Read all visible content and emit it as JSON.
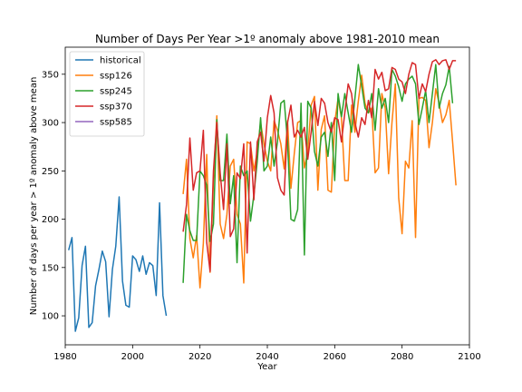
{
  "chart_data": {
    "type": "line",
    "title": "Number of Days Per Year >1º anomaly above 1981-2010 mean",
    "xlabel": "Year",
    "ylabel": "Number of days per year > 1º anomaly above mean",
    "xlim": [
      1980,
      2100
    ],
    "ylim": [
      70,
      378
    ],
    "xticks": [
      1980,
      2000,
      2020,
      2040,
      2060,
      2080,
      2100
    ],
    "yticks": [
      100,
      150,
      200,
      250,
      300,
      350
    ],
    "grid": false,
    "legend_position": "top-left",
    "series": [
      {
        "name": "historical",
        "color": "#1f77b4",
        "start_year": 1981,
        "values": [
          168,
          181,
          84,
          98,
          152,
          172,
          88,
          93,
          131,
          148,
          167,
          156,
          99,
          148,
          172,
          223,
          136,
          111,
          109,
          162,
          158,
          146,
          162,
          143,
          155,
          152,
          121,
          217,
          121,
          100
        ]
      },
      {
        "name": "ssp126",
        "color": "#ff7f0e",
        "start_year": 2015,
        "values": [
          226,
          262,
          180,
          160,
          183,
          129,
          175,
          267,
          145,
          240,
          307,
          195,
          180,
          205,
          255,
          262,
          205,
          195,
          134,
          280,
          278,
          250,
          270,
          300,
          278,
          260,
          250,
          302,
          292,
          278,
          252,
          302,
          232,
          268,
          300,
          302,
          253,
          270,
          318,
          327,
          230,
          293,
          307,
          230,
          228,
          300,
          325,
          305,
          240,
          240,
          318,
          290,
          322,
          349,
          320,
          310,
          315,
          248,
          253,
          330,
          315,
          247,
          300,
          340,
          222,
          185,
          260,
          253,
          302,
          181,
          325,
          326,
          323,
          274,
          300,
          335,
          320,
          300,
          308,
          323,
          280,
          235
        ]
      },
      {
        "name": "ssp245",
        "color": "#2ca02c",
        "start_year": 2015,
        "values": [
          134,
          205,
          188,
          178,
          178,
          250,
          245,
          235,
          177,
          195,
          303,
          240,
          240,
          288,
          216,
          245,
          155,
          255,
          245,
          250,
          198,
          225,
          260,
          305,
          250,
          255,
          285,
          255,
          280,
          320,
          323,
          280,
          200,
          198,
          210,
          320,
          163,
          322,
          315,
          270,
          255,
          285,
          290,
          265,
          300,
          240,
          330,
          306,
          330,
          310,
          290,
          325,
          360,
          338,
          315,
          310,
          330,
          292,
          335,
          315,
          325,
          300,
          355,
          348,
          337,
          322,
          340,
          345,
          348,
          340,
          298,
          315,
          333,
          300,
          330,
          360,
          315,
          330,
          339,
          358,
          320
        ]
      },
      {
        "name": "ssp370",
        "color": "#d62728",
        "start_year": 2015,
        "values": [
          187,
          215,
          284,
          230,
          248,
          250,
          292,
          176,
          146,
          250,
          300,
          248,
          210,
          278,
          182,
          190,
          248,
          242,
          278,
          165,
          280,
          220,
          280,
          290,
          260,
          305,
          328,
          310,
          243,
          230,
          225,
          300,
          318,
          285,
          292,
          285,
          295,
          262,
          290,
          322,
          297,
          325,
          320,
          300,
          290,
          305,
          303,
          280,
          310,
          340,
          330,
          300,
          285,
          305,
          298,
          323,
          305,
          355,
          345,
          352,
          333,
          335,
          357,
          355,
          345,
          342,
          330,
          350,
          362,
          360,
          325,
          340,
          332,
          350,
          363,
          365,
          360,
          364,
          365,
          355,
          364,
          364
        ]
      },
      {
        "name": "ssp585",
        "color": "#9467bd",
        "start_year": 2015,
        "values": []
      }
    ]
  }
}
